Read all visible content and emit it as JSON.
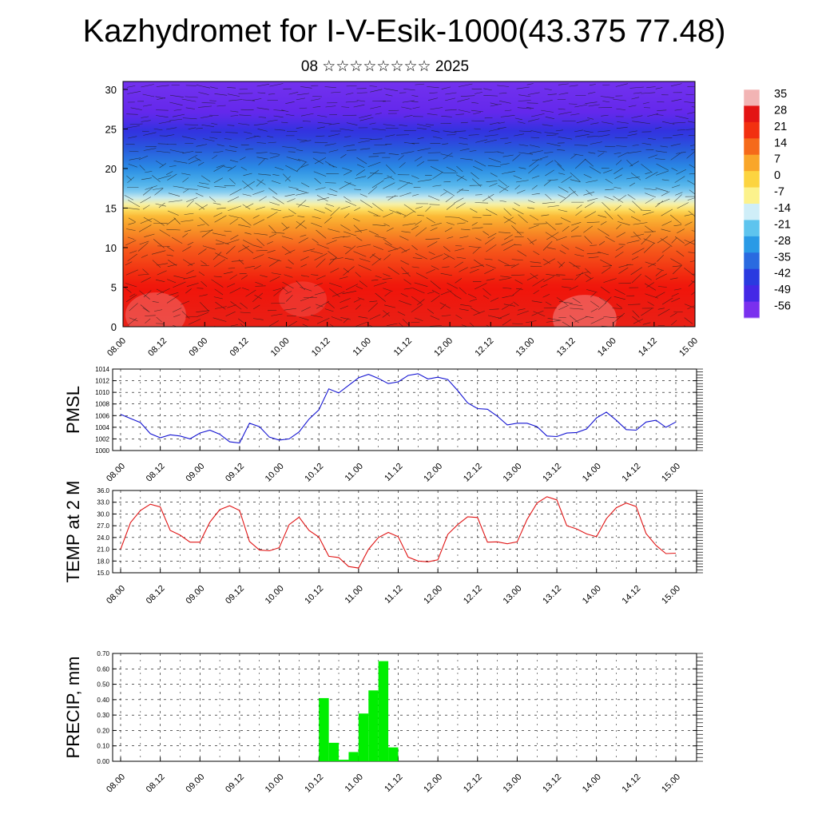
{
  "header": {
    "title": "Kazhydromet for I-V-Esik-1000(43.375 77.48)",
    "subtitle": "08 ☆☆☆☆☆☆☆☆ 2025"
  },
  "time_labels": [
    "08.00",
    "08.12",
    "09.00",
    "09.12",
    "10.00",
    "10.12",
    "11.00",
    "11.12",
    "12.00",
    "12.12",
    "13.00",
    "13.12",
    "14.00",
    "14.12",
    "15.00"
  ],
  "chart_data": [
    {
      "type": "heatmap",
      "title": "",
      "y_ticks": [
        0,
        5,
        10,
        15,
        20,
        25,
        30
      ],
      "ylim": [
        0,
        31
      ],
      "xlim": [
        0,
        14
      ],
      "colorbar": {
        "labels": [
          "35",
          "28",
          "21",
          "14",
          "7",
          "0",
          "-7",
          "-14",
          "-21",
          "-28",
          "-35",
          "-42",
          "-49",
          "-56"
        ],
        "colors": [
          "#f2b4b4",
          "#e31414",
          "#f23010",
          "#f56a1a",
          "#f9a62a",
          "#fcd440",
          "#fcf28c",
          "#cfeef8",
          "#5ec4ee",
          "#2a9ae6",
          "#2a6ae0",
          "#2a3ae0",
          "#4428e6",
          "#7a30ee"
        ]
      },
      "temperature_profile": [
        {
          "h": 0,
          "temp": 28
        },
        {
          "h": 5,
          "temp": 24
        },
        {
          "h": 10,
          "temp": 15
        },
        {
          "h": 14,
          "temp": 2
        },
        {
          "h": 15.5,
          "temp": -10
        },
        {
          "h": 17,
          "temp": -20
        },
        {
          "h": 20,
          "temp": -32
        },
        {
          "h": 24,
          "temp": -48
        },
        {
          "h": 27,
          "temp": -56
        },
        {
          "h": 31,
          "temp": -58
        }
      ]
    },
    {
      "type": "line",
      "ylabel": "PMSL",
      "ylim": [
        1000,
        1014
      ],
      "y_ticks": [
        "1000",
        "1002",
        "1004",
        "1006",
        "1008",
        "1010",
        "1012",
        "1014"
      ],
      "color": "#1414d2",
      "x": [
        0,
        0.25,
        0.5,
        0.75,
        1,
        1.25,
        1.5,
        1.75,
        2,
        2.25,
        2.5,
        2.75,
        3,
        3.25,
        3.5,
        3.75,
        4,
        4.25,
        4.5,
        4.75,
        5,
        5.25,
        5.5,
        5.75,
        6,
        6.25,
        6.5,
        6.75,
        7,
        7.25,
        7.5,
        7.75,
        8,
        8.25,
        8.5,
        8.75,
        9,
        9.25,
        9.5,
        9.75,
        10,
        10.25,
        10.5,
        10.75,
        11,
        11.25,
        11.5,
        11.75,
        12,
        12.25,
        12.5,
        12.75,
        13,
        13.25,
        13.5,
        13.75,
        14
      ],
      "values": [
        1006.2,
        1005.5,
        1004.8,
        1002.9,
        1002.2,
        1002.7,
        1002.5,
        1002.0,
        1003.0,
        1003.5,
        1002.8,
        1001.5,
        1001.3,
        1004.7,
        1004.1,
        1002.3,
        1001.8,
        1002.0,
        1003.2,
        1005.4,
        1007.0,
        1010.6,
        1009.9,
        1011.2,
        1012.5,
        1013.1,
        1012.4,
        1011.5,
        1011.8,
        1012.9,
        1013.2,
        1012.3,
        1012.6,
        1012.2,
        1010.3,
        1008.2,
        1007.2,
        1007.1,
        1005.9,
        1004.4,
        1004.7,
        1004.7,
        1004.1,
        1002.5,
        1002.4,
        1003.0,
        1003.1,
        1003.7,
        1005.6,
        1006.6,
        1005.2,
        1003.6,
        1003.5,
        1004.9,
        1005.2,
        1004.0,
        1004.9
      ]
    },
    {
      "type": "line",
      "ylabel": "TEMP at 2 M",
      "ylim": [
        15,
        36
      ],
      "y_ticks": [
        "15.0",
        "18.0",
        "21.0",
        "24.0",
        "27.0",
        "30.0",
        "33.0",
        "36.0"
      ],
      "color": "#e01414",
      "x": [
        0,
        0.25,
        0.5,
        0.75,
        1,
        1.25,
        1.5,
        1.75,
        2,
        2.25,
        2.5,
        2.75,
        3,
        3.25,
        3.5,
        3.75,
        4,
        4.25,
        4.5,
        4.75,
        5,
        5.25,
        5.5,
        5.75,
        6,
        6.25,
        6.5,
        6.75,
        7,
        7.25,
        7.5,
        7.75,
        8,
        8.25,
        8.5,
        8.75,
        9,
        9.25,
        9.5,
        9.75,
        10,
        10.25,
        10.5,
        10.75,
        11,
        11.25,
        11.5,
        11.75,
        12,
        12.25,
        12.5,
        12.75,
        13,
        13.25,
        13.5,
        13.75,
        14
      ],
      "values": [
        21.0,
        27.8,
        30.9,
        32.5,
        31.8,
        25.8,
        24.6,
        22.8,
        22.8,
        27.9,
        31.1,
        32.1,
        30.9,
        23.0,
        20.8,
        20.6,
        21.4,
        27.3,
        29.2,
        25.8,
        24.1,
        19.2,
        18.9,
        16.6,
        16.2,
        21.0,
        24.0,
        25.3,
        24.2,
        19.0,
        18.0,
        17.8,
        18.3,
        24.8,
        27.3,
        29.3,
        29.1,
        22.8,
        22.9,
        22.4,
        22.9,
        28.6,
        32.8,
        34.4,
        33.6,
        27.0,
        26.2,
        24.9,
        24.2,
        28.8,
        31.6,
        32.8,
        31.9,
        25.0,
        22.0,
        19.9,
        20.0
      ]
    },
    {
      "type": "bar",
      "ylabel": "PRECIP, mm",
      "ylim": [
        0,
        0.7
      ],
      "y_ticks": [
        "0.00",
        "0.10",
        "0.20",
        "0.30",
        "0.40",
        "0.50",
        "0.60",
        "0.70"
      ],
      "color": "#00ee00",
      "bin_width": 0.25,
      "x": [
        5.0,
        5.25,
        5.5,
        5.75,
        6.0,
        6.25,
        6.5,
        6.75,
        7.0
      ],
      "values": [
        0.41,
        0.12,
        0.01,
        0.06,
        0.31,
        0.46,
        0.65,
        0.09,
        0.0
      ]
    }
  ]
}
